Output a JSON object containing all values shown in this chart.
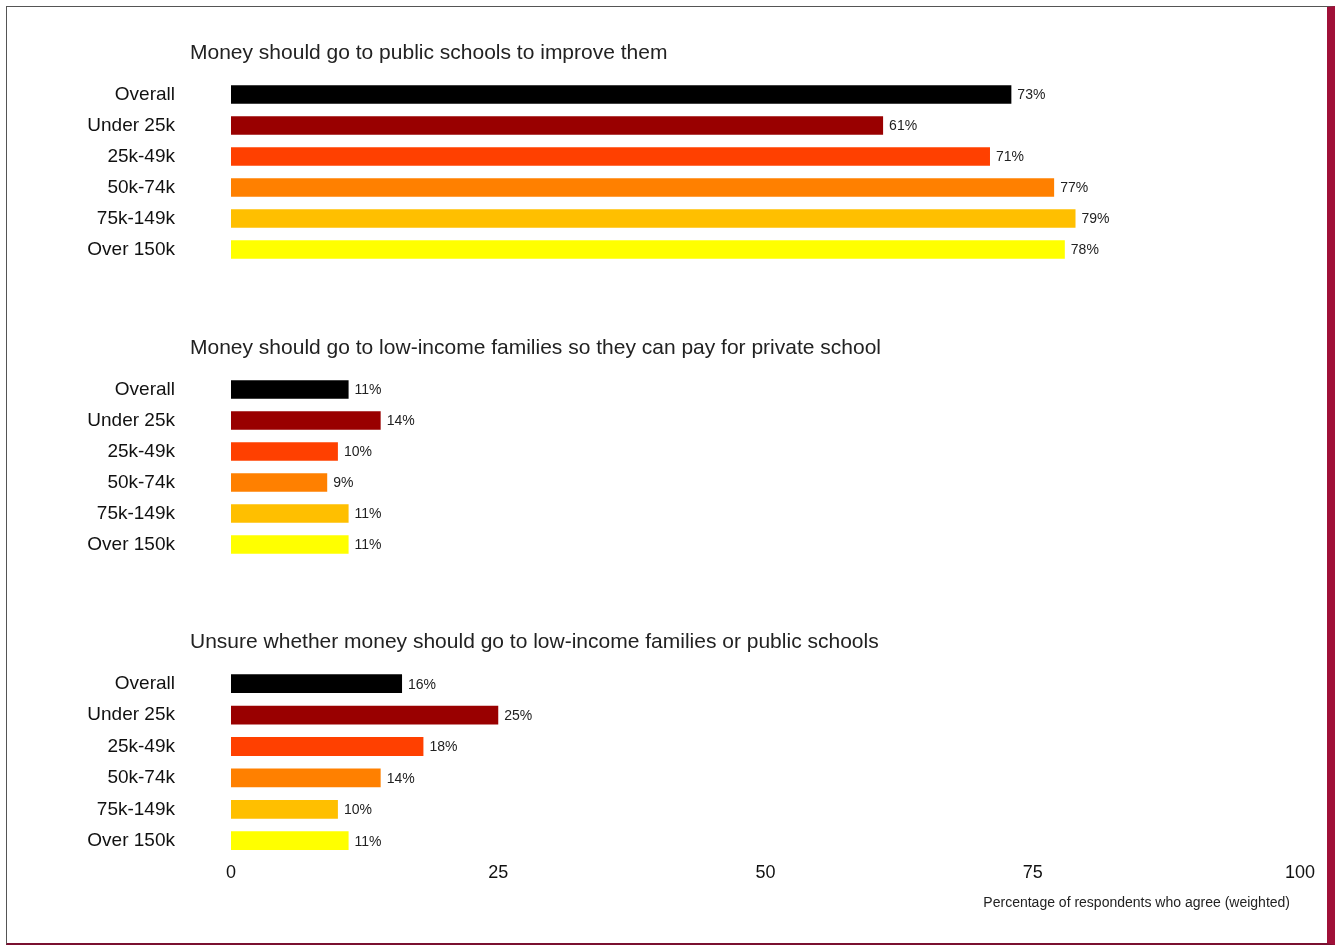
{
  "chart_data": [
    {
      "type": "bar",
      "orientation": "horizontal",
      "title": "Money should go to public schools to improve them",
      "categories": [
        "Overall",
        "Under 25k",
        "25k-49k",
        "50k-74k",
        "75k-149k",
        "Over 150k"
      ],
      "values": [
        73,
        61,
        71,
        77,
        79,
        78
      ],
      "value_labels": [
        "73%",
        "61%",
        "71%",
        "77%",
        "79%",
        "78%"
      ],
      "colors": [
        "#000000",
        "#990000",
        "#ff4000",
        "#ff8000",
        "#ffbf00",
        "#ffff00"
      ],
      "xlim": [
        0,
        100
      ],
      "xticks": [
        0,
        25,
        50,
        75,
        100
      ],
      "tick_labels": "y"
    },
    {
      "type": "bar",
      "orientation": "horizontal",
      "title": "Money should go to low-income families so they can pay for private school",
      "categories": [
        "Overall",
        "Under 25k",
        "25k-49k",
        "50k-74k",
        "75k-149k",
        "Over 150k"
      ],
      "values": [
        11,
        14,
        10,
        9,
        11,
        11
      ],
      "value_labels": [
        "11%",
        "14%",
        "10%",
        "9%",
        "11%",
        "11%"
      ],
      "colors": [
        "#000000",
        "#990000",
        "#ff4000",
        "#ff8000",
        "#ffbf00",
        "#ffff00"
      ],
      "xlim": [
        0,
        100
      ],
      "xticks": [
        0,
        25,
        50,
        75,
        100
      ],
      "tick_labels": "y"
    },
    {
      "type": "bar",
      "orientation": "horizontal",
      "title": "Unsure whether money should go to low-income families or public schools",
      "xlabel": "Percentage of respondents who agree (weighted)",
      "categories": [
        "Overall",
        "Under 25k",
        "25k-49k",
        "50k-74k",
        "75k-149k",
        "Over 150k"
      ],
      "values": [
        16,
        25,
        18,
        14,
        10,
        11
      ],
      "value_labels": [
        "16%",
        "25%",
        "18%",
        "14%",
        "10%",
        "11%"
      ],
      "colors": [
        "#000000",
        "#990000",
        "#ff4000",
        "#ff8000",
        "#ffbf00",
        "#ffff00"
      ],
      "xlim": [
        0,
        100
      ],
      "xticks": [
        0,
        25,
        50,
        75,
        100
      ]
    }
  ]
}
